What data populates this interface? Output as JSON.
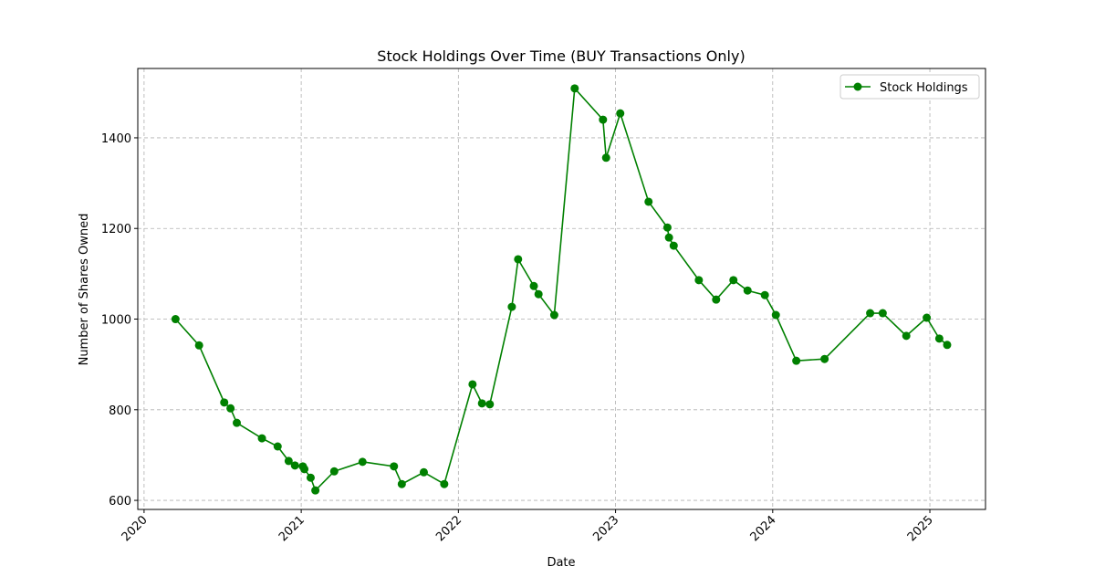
{
  "chart_data": {
    "type": "line",
    "title": "Stock Holdings Over Time (BUY Transactions Only)",
    "x_label": "Date",
    "y_label": "Number of Shares Owned",
    "x": [
      2020.2,
      2020.35,
      2020.51,
      2020.55,
      2020.59,
      2020.75,
      2020.85,
      2020.92,
      2020.96,
      2021.01,
      2021.02,
      2021.06,
      2021.09,
      2021.21,
      2021.39,
      2021.59,
      2021.64,
      2021.78,
      2021.91,
      2022.09,
      2022.15,
      2022.2,
      2022.34,
      2022.38,
      2022.48,
      2022.51,
      2022.61,
      2022.74,
      2022.92,
      2022.94,
      2023.03,
      2023.21,
      2023.33,
      2023.34,
      2023.37,
      2023.53,
      2023.64,
      2023.75,
      2023.84,
      2023.95,
      2024.02,
      2024.15,
      2024.33,
      2024.62,
      2024.7,
      2024.85,
      2024.98,
      2025.06,
      2025.11
    ],
    "series": [
      {
        "name": "Stock Holdings",
        "color": "#008000",
        "values": [
          1000,
          942,
          816,
          803,
          771,
          737,
          719,
          687,
          677,
          675,
          669,
          650,
          622,
          664,
          685,
          675,
          636,
          662,
          636,
          856,
          814,
          812,
          1027,
          1132,
          1073,
          1055,
          1009,
          1509,
          1440,
          1356,
          1454,
          1259,
          1202,
          1180,
          1162,
          1086,
          1043,
          1086,
          1063,
          1053,
          1009,
          908,
          912,
          1013,
          1013,
          963,
          1003,
          957,
          943
        ]
      }
    ],
    "xlim": [
      2019.96,
      2025.354
    ],
    "xticks": [
      2020,
      2021,
      2022,
      2023,
      2024,
      2025
    ],
    "ylim": [
      580,
      1553
    ],
    "yticks": [
      600,
      800,
      1000,
      1200,
      1400
    ],
    "grid": true,
    "legend": "upper right"
  }
}
